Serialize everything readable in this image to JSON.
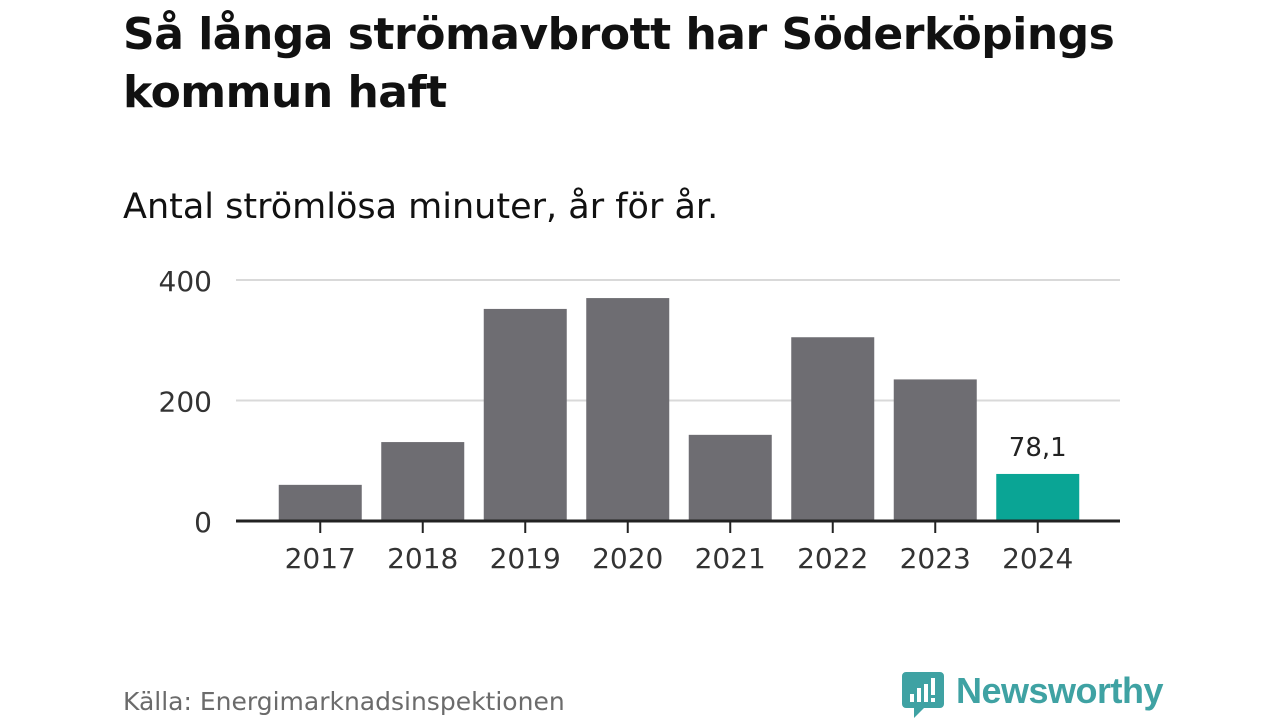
{
  "title": "Så långa strömavbrott har Söderköpings kommun haft",
  "subtitle": "Antal strömlösa minuter, år för år.",
  "source": "Källa: Energimarknadsinspektionen",
  "brand": {
    "name": "Newsworthy",
    "logo_icon": "newsworthy-logo-icon",
    "color": "#3fa2a3"
  },
  "colors": {
    "bar": "#6e6d72",
    "highlight": "#0aa595",
    "grid": "#d9d9d9",
    "axis": "#222222"
  },
  "chart_data": {
    "type": "bar",
    "title": "Så långa strömavbrott har Söderköpings kommun haft",
    "subtitle": "Antal strömlösa minuter, år för år.",
    "xlabel": "",
    "ylabel": "",
    "categories": [
      "2017",
      "2018",
      "2019",
      "2020",
      "2021",
      "2022",
      "2023",
      "2024"
    ],
    "values": [
      60,
      131,
      352,
      370,
      143,
      305,
      235,
      78.1
    ],
    "highlight_index": 7,
    "data_labels": [
      {
        "index": 7,
        "text": "78,1"
      }
    ],
    "ylim": [
      0,
      400
    ],
    "yticks": [
      0,
      200,
      400
    ],
    "ytick_labels": [
      "0",
      "200",
      "400"
    ],
    "grid": true,
    "legend": "none"
  }
}
